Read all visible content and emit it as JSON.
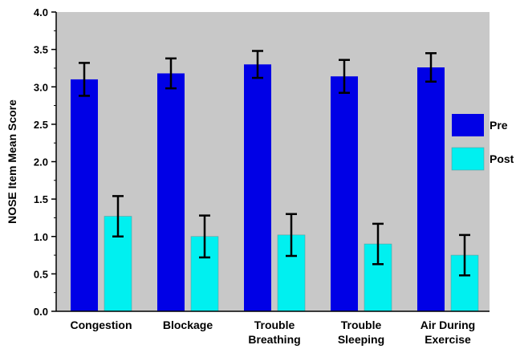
{
  "chart_data": {
    "type": "bar",
    "title": "",
    "xlabel": "",
    "ylabel": "NOSE Item Mean Score",
    "ylim": [
      0,
      4
    ],
    "yticks": [
      "0.0",
      "0.5",
      "1.0",
      "1.5",
      "2.0",
      "2.5",
      "3.0",
      "3.5",
      "4.0"
    ],
    "grid": false,
    "legend_position": "right",
    "categories": [
      [
        "Congestion"
      ],
      [
        "Blockage"
      ],
      [
        "Trouble",
        "Breathing"
      ],
      [
        "Trouble",
        "Sleeping"
      ],
      [
        "Air During",
        "Exercise"
      ]
    ],
    "series": [
      {
        "name": "Pre",
        "color": "#0000e6",
        "values": [
          3.1,
          3.18,
          3.3,
          3.14,
          3.26
        ],
        "error": [
          0.22,
          0.2,
          0.18,
          0.22,
          0.19
        ]
      },
      {
        "name": "Post",
        "color": "#00f0f0",
        "values": [
          1.27,
          1.0,
          1.02,
          0.9,
          0.75
        ],
        "error": [
          0.27,
          0.28,
          0.28,
          0.27,
          0.27
        ]
      }
    ],
    "plot_background": "#c8c8c8"
  }
}
